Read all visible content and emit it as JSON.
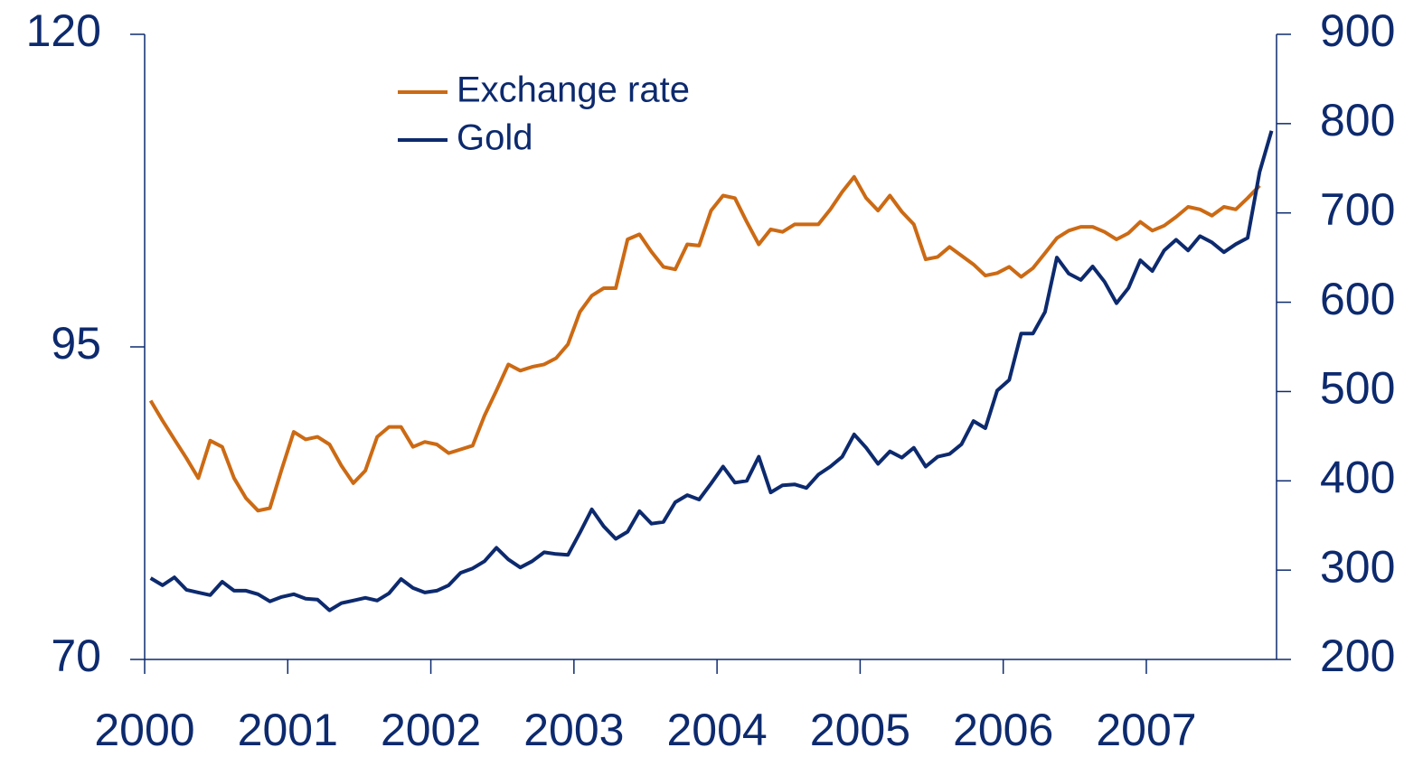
{
  "chart_data": {
    "type": "line",
    "x": [
      2000.042,
      2000.125,
      2000.208,
      2000.292,
      2000.375,
      2000.458,
      2000.542,
      2000.625,
      2000.708,
      2000.792,
      2000.875,
      2000.958,
      2001.042,
      2001.125,
      2001.208,
      2001.292,
      2001.375,
      2001.458,
      2001.542,
      2001.625,
      2001.708,
      2001.792,
      2001.875,
      2001.958,
      2002.042,
      2002.125,
      2002.208,
      2002.292,
      2002.375,
      2002.458,
      2002.542,
      2002.625,
      2002.708,
      2002.792,
      2002.875,
      2002.958,
      2003.042,
      2003.125,
      2003.208,
      2003.292,
      2003.375,
      2003.458,
      2003.542,
      2003.625,
      2003.708,
      2003.792,
      2003.875,
      2003.958,
      2004.042,
      2004.125,
      2004.208,
      2004.292,
      2004.375,
      2004.458,
      2004.542,
      2004.625,
      2004.708,
      2004.792,
      2004.875,
      2004.958,
      2005.042,
      2005.125,
      2005.208,
      2005.292,
      2005.375,
      2005.458,
      2005.542,
      2005.625,
      2005.708,
      2005.792,
      2005.875,
      2005.958,
      2006.042,
      2006.125,
      2006.208,
      2006.292,
      2006.375,
      2006.458,
      2006.542,
      2006.625,
      2006.708,
      2006.792,
      2006.875,
      2006.958,
      2007.042,
      2007.125,
      2007.208,
      2007.292,
      2007.375,
      2007.458,
      2007.542,
      2007.625,
      2007.708,
      2007.792,
      2007.875
    ],
    "series": [
      {
        "name": "Exchange rate",
        "color": "#cc6a14",
        "axis": "y",
        "values": [
          90.7,
          89.1,
          87.6,
          86.1,
          84.5,
          87.5,
          87.0,
          84.5,
          82.9,
          81.9,
          82.1,
          85.2,
          88.2,
          87.6,
          87.8,
          87.2,
          85.5,
          84.1,
          85.1,
          87.8,
          88.6,
          88.6,
          87.0,
          87.4,
          87.2,
          86.5,
          86.8,
          87.1,
          89.5,
          91.5,
          93.6,
          93.1,
          93.4,
          93.6,
          94.1,
          95.2,
          97.8,
          99.1,
          99.7,
          99.7,
          103.6,
          104.0,
          102.6,
          101.4,
          101.2,
          103.2,
          103.1,
          105.9,
          107.1,
          106.9,
          105.0,
          103.2,
          104.4,
          104.2,
          104.8,
          104.8,
          104.8,
          106.0,
          107.4,
          108.6,
          106.9,
          105.9,
          107.1,
          105.8,
          104.8,
          102.0,
          102.2,
          103.0,
          102.3,
          101.6,
          100.7,
          100.9,
          101.4,
          100.6,
          101.3,
          102.5,
          103.7,
          104.3,
          104.6,
          104.6,
          104.2,
          103.6,
          104.1,
          105.0,
          104.3,
          104.7,
          105.4,
          106.2,
          106.0,
          105.5,
          106.2,
          106.0,
          106.9,
          107.9,
          null
        ]
      },
      {
        "name": "Gold",
        "color": "#0d2a6e",
        "axis": "y2",
        "values": [
          291,
          283,
          292,
          278,
          275,
          272,
          287,
          277,
          277,
          273,
          265,
          270,
          273,
          268,
          267,
          255,
          263,
          266,
          269,
          266,
          274,
          290,
          280,
          275,
          277,
          283,
          297,
          302,
          310,
          325,
          312,
          303,
          310,
          320,
          318,
          317,
          342,
          368,
          349,
          335,
          343,
          366,
          352,
          354,
          376,
          384,
          379,
          397,
          416,
          398,
          400,
          427,
          387,
          395,
          396,
          392,
          407,
          416,
          427,
          452,
          437,
          419,
          433,
          426,
          437,
          416,
          427,
          430,
          441,
          467,
          459,
          501,
          513,
          565,
          565,
          589,
          650,
          632,
          625,
          640,
          623,
          599,
          616,
          647,
          635,
          658,
          670,
          658,
          674,
          667,
          656,
          665,
          672,
          746,
          792
        ]
      }
    ],
    "xlim": [
      2000,
      2007.91
    ],
    "xticks": [
      2000,
      2001,
      2002,
      2003,
      2004,
      2005,
      2006,
      2007
    ],
    "ylim": [
      70,
      120
    ],
    "yticks": [
      70,
      95,
      120
    ],
    "y2lim": [
      200,
      900
    ],
    "y2ticks": [
      200,
      300,
      400,
      500,
      600,
      700,
      800,
      900
    ],
    "legend": "top-left"
  }
}
